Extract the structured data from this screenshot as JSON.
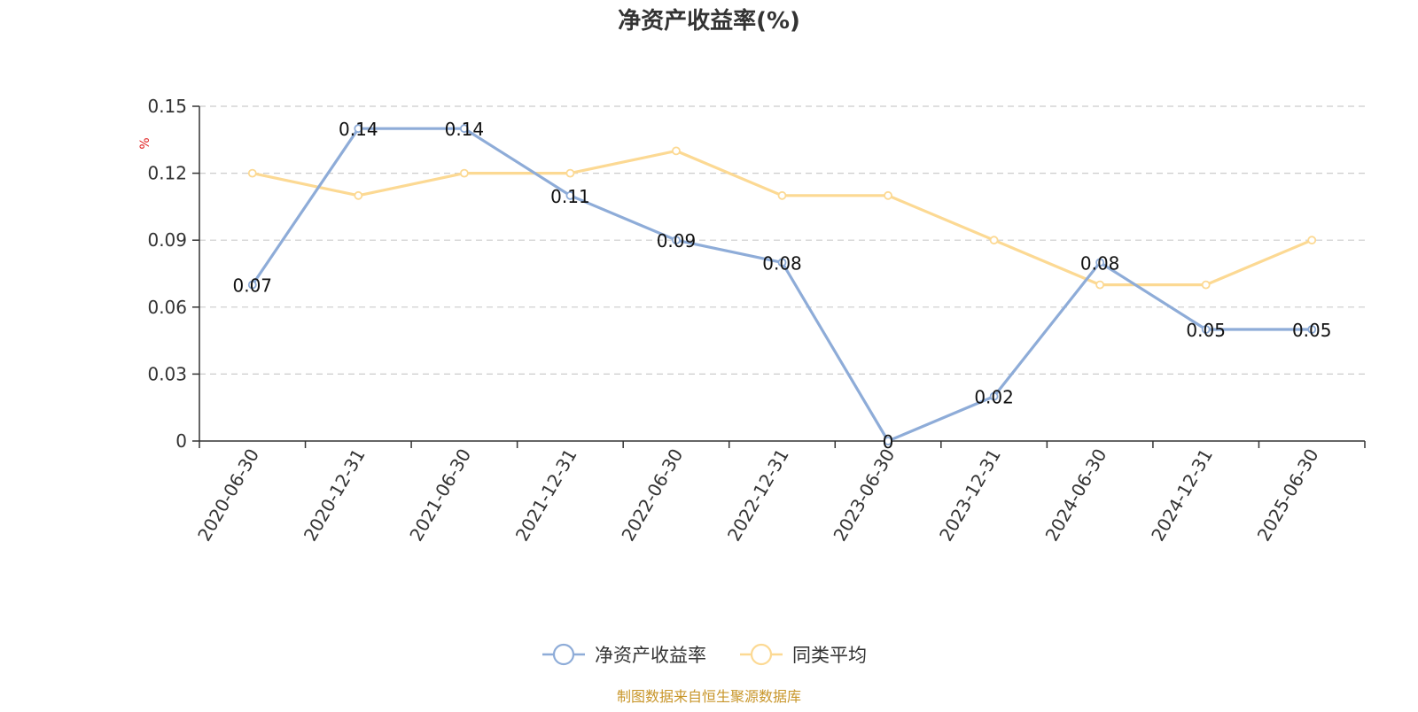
{
  "chart_data": {
    "type": "line",
    "title": "净资产收益率(%)",
    "ylabel": "%",
    "ylim": [
      0,
      0.15
    ],
    "yticks": [
      0,
      0.03,
      0.06,
      0.09,
      0.12,
      0.15
    ],
    "ytick_labels": [
      "0",
      "0.03",
      "0.06",
      "0.09",
      "0.12",
      "0.15"
    ],
    "grid": true,
    "legend_position": "bottom-center",
    "categories": [
      "2020-06-30",
      "2020-12-31",
      "2021-06-30",
      "2021-12-31",
      "2022-06-30",
      "2022-12-31",
      "2023-06-30",
      "2023-12-31",
      "2024-06-30",
      "2024-12-31",
      "2025-06-30"
    ],
    "series": [
      {
        "name": "净资产收益率",
        "color": "#8eacd8",
        "values": [
          0.07,
          0.14,
          0.14,
          0.11,
          0.09,
          0.08,
          0,
          0.02,
          0.08,
          0.05,
          0.05
        ],
        "labels": [
          "0.07",
          "0.14",
          "0.14",
          "0.11",
          "0.09",
          "0.08",
          "0",
          "0.02",
          "0.08",
          "0.05",
          "0.05"
        ]
      },
      {
        "name": "同类平均",
        "color": "#fcd993",
        "values": [
          0.12,
          0.11,
          0.12,
          0.12,
          0.13,
          0.11,
          0.11,
          0.09,
          0.07,
          0.07,
          0.09
        ]
      }
    ]
  },
  "footer": {
    "source": "制图数据来自恒生聚源数据库"
  }
}
